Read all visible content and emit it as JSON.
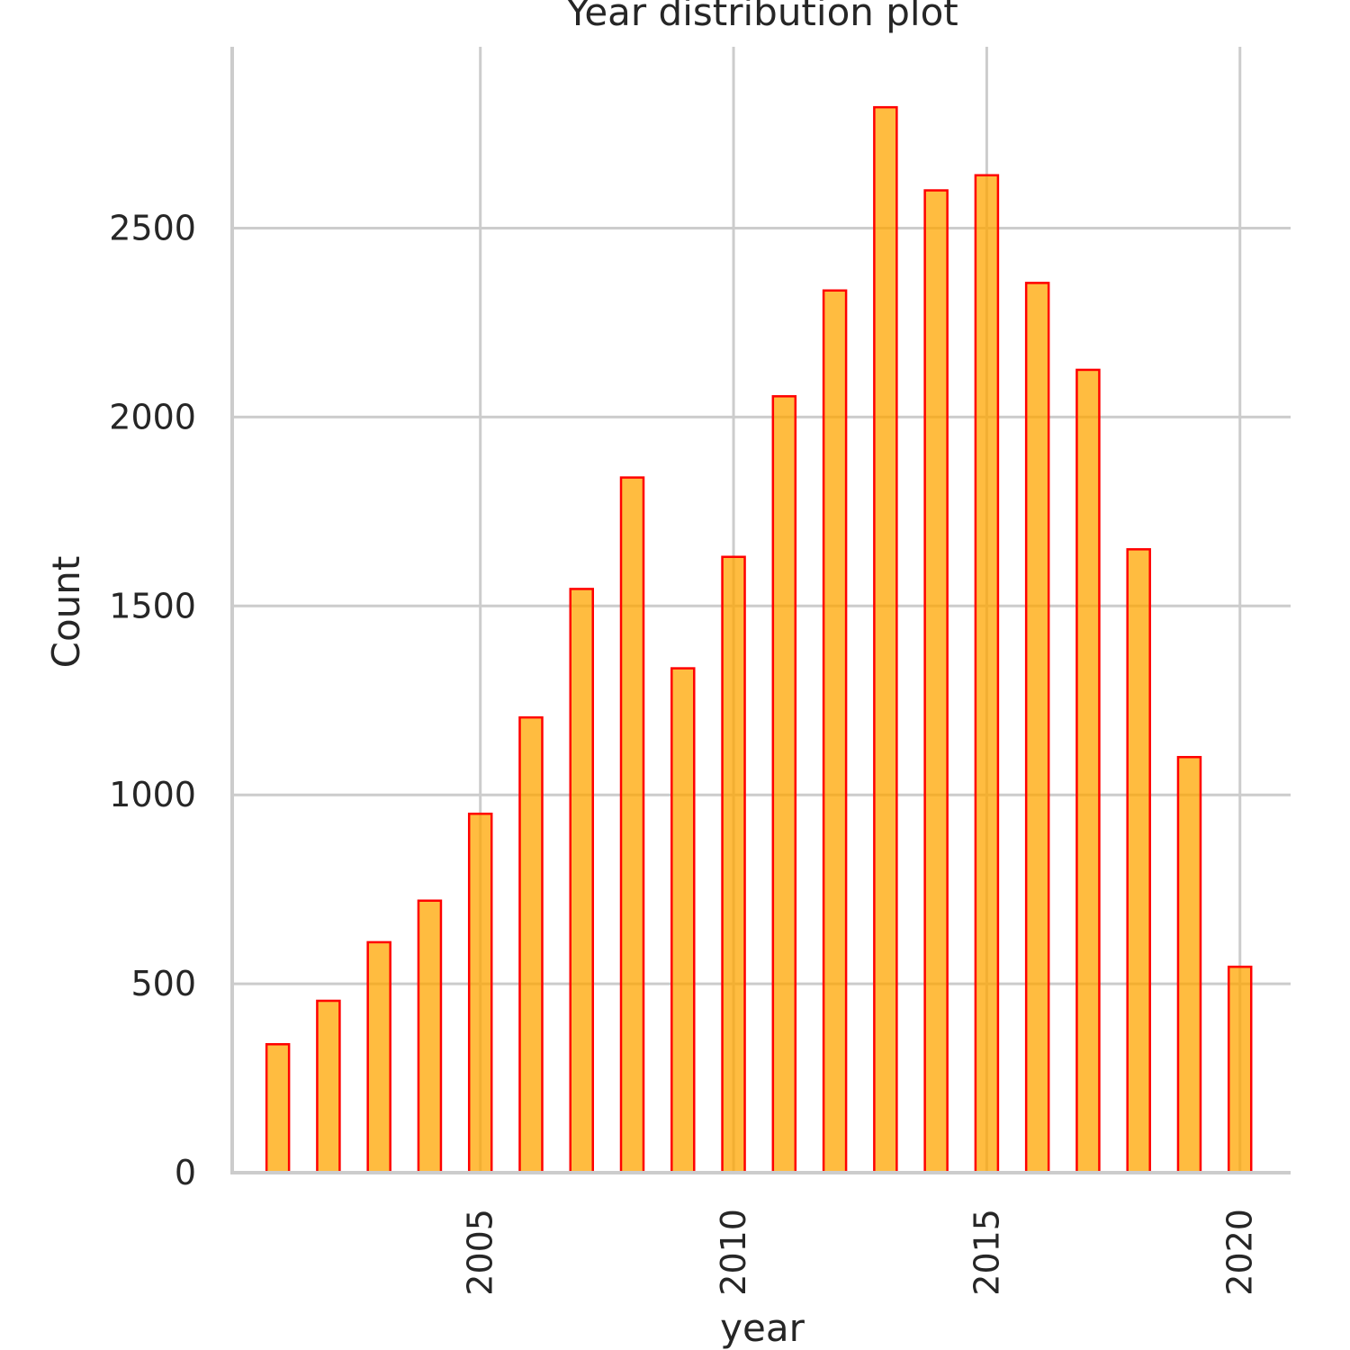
{
  "chart_data": {
    "type": "bar",
    "title": "Year distribution plot",
    "xlabel": "year",
    "ylabel": "Count",
    "x": [
      2001,
      2002,
      2003,
      2004,
      2005,
      2006,
      2007,
      2008,
      2009,
      2010,
      2011,
      2012,
      2013,
      2014,
      2015,
      2016,
      2017,
      2018,
      2019,
      2020
    ],
    "values": [
      340,
      455,
      610,
      720,
      950,
      1205,
      1545,
      1840,
      1335,
      1630,
      2055,
      2335,
      2820,
      2600,
      2640,
      2355,
      2125,
      1650,
      1100,
      545
    ],
    "xlim": [
      2000.1,
      2021.0
    ],
    "ylim": [
      0,
      2980
    ],
    "xticks": [
      2005,
      2010,
      2015,
      2020
    ],
    "yticks": [
      0,
      500,
      1000,
      1500,
      2000,
      2500
    ],
    "grid": true,
    "legend": "none",
    "colors": {
      "bar_fill": "#ffa500",
      "bar_edge": "#ff0000",
      "grid": "#cccccc",
      "text": "#262626"
    }
  }
}
